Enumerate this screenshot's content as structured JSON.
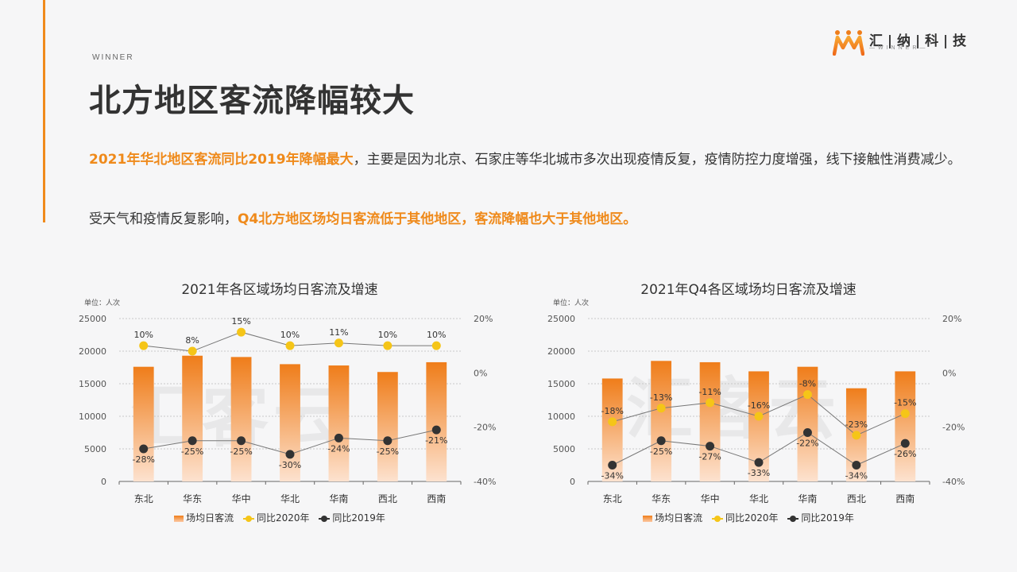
{
  "header": {
    "tag": "WINNER",
    "title": "北方地区客流降幅较大",
    "logo_name": "汇 | 纳 | 科 | 技",
    "logo_sub": "—WINNER—"
  },
  "body": {
    "p1_highlight": "2021年华北地区客流同比2019年降幅最大",
    "p1_rest": "，主要是因为北京、石家庄等华北城市多次出现疫情反复，疫情防控力度增强，线下接触性消费减少。",
    "p2_start": "受天气和疫情反复影响，",
    "p2_highlight": "Q4北方地区场均日客流低于其他地区，客流降幅也大于其他地区。"
  },
  "colors": {
    "accent": "#ef8a1b",
    "bar_top": "#ef7d1a",
    "bar_bottom": "#fde2cf",
    "line_2020": "#f5c518",
    "line_2019": "#333333"
  },
  "chart_data": [
    {
      "type": "bar",
      "title": "2021年各区域场均日客流及增速",
      "unit": "单位：人次",
      "watermark": "汇客云",
      "categories": [
        "东北",
        "华东",
        "华中",
        "华北",
        "华南",
        "西北",
        "西南"
      ],
      "ylim": [
        0,
        25000
      ],
      "yticks": [
        "0",
        "5000",
        "10000",
        "15000",
        "20000",
        "25000"
      ],
      "y2lim": [
        -40,
        20
      ],
      "y2ticks": [
        "-40%",
        "-20%",
        "0%",
        "20%"
      ],
      "series": [
        {
          "name": "场均日客流",
          "kind": "bar",
          "values": [
            17600,
            19300,
            19100,
            18000,
            17800,
            16800,
            18300
          ]
        },
        {
          "name": "同比2020年",
          "kind": "line",
          "color": "#f5c518",
          "values": [
            10,
            8,
            15,
            10,
            11,
            10,
            10
          ],
          "labels": [
            "10%",
            "8%",
            "15%",
            "10%",
            "11%",
            "10%",
            "10%"
          ]
        },
        {
          "name": "同比2019年",
          "kind": "line",
          "color": "#333333",
          "values": [
            -28,
            -25,
            -25,
            -30,
            -24,
            -25,
            -21
          ],
          "labels": [
            "-28%",
            "-25%",
            "-25%",
            "-30%",
            "-24%",
            "-25%",
            "-21%"
          ]
        }
      ],
      "legend": [
        "场均日客流",
        "同比2020年",
        "同比2019年"
      ]
    },
    {
      "type": "bar",
      "title": "2021年Q4各区域场均日客流及增速",
      "unit": "单位：人次",
      "watermark": "汇客云",
      "categories": [
        "东北",
        "华东",
        "华中",
        "华北",
        "华南",
        "西北",
        "西南"
      ],
      "ylim": [
        0,
        25000
      ],
      "yticks": [
        "0",
        "5000",
        "10000",
        "15000",
        "20000",
        "25000"
      ],
      "y2lim": [
        -40,
        20
      ],
      "y2ticks": [
        "-40%",
        "-20%",
        "0%",
        "20%"
      ],
      "series": [
        {
          "name": "场均日客流",
          "kind": "bar",
          "values": [
            15800,
            18500,
            18300,
            16900,
            17600,
            14300,
            16900
          ]
        },
        {
          "name": "同比2020年",
          "kind": "line",
          "color": "#f5c518",
          "values": [
            -18,
            -13,
            -11,
            -16,
            -8,
            -23,
            -15
          ],
          "labels": [
            "-18%",
            "-13%",
            "-11%",
            "-16%",
            "-8%",
            "-23%",
            "-15%"
          ]
        },
        {
          "name": "同比2019年",
          "kind": "line",
          "color": "#333333",
          "values": [
            -34,
            -25,
            -27,
            -33,
            -22,
            -34,
            -26
          ],
          "labels": [
            "-34%",
            "-25%",
            "-27%",
            "-33%",
            "-22%",
            "-34%",
            "-26%"
          ]
        }
      ],
      "legend": [
        "场均日客流",
        "同比2020年",
        "同比2019年"
      ]
    }
  ]
}
